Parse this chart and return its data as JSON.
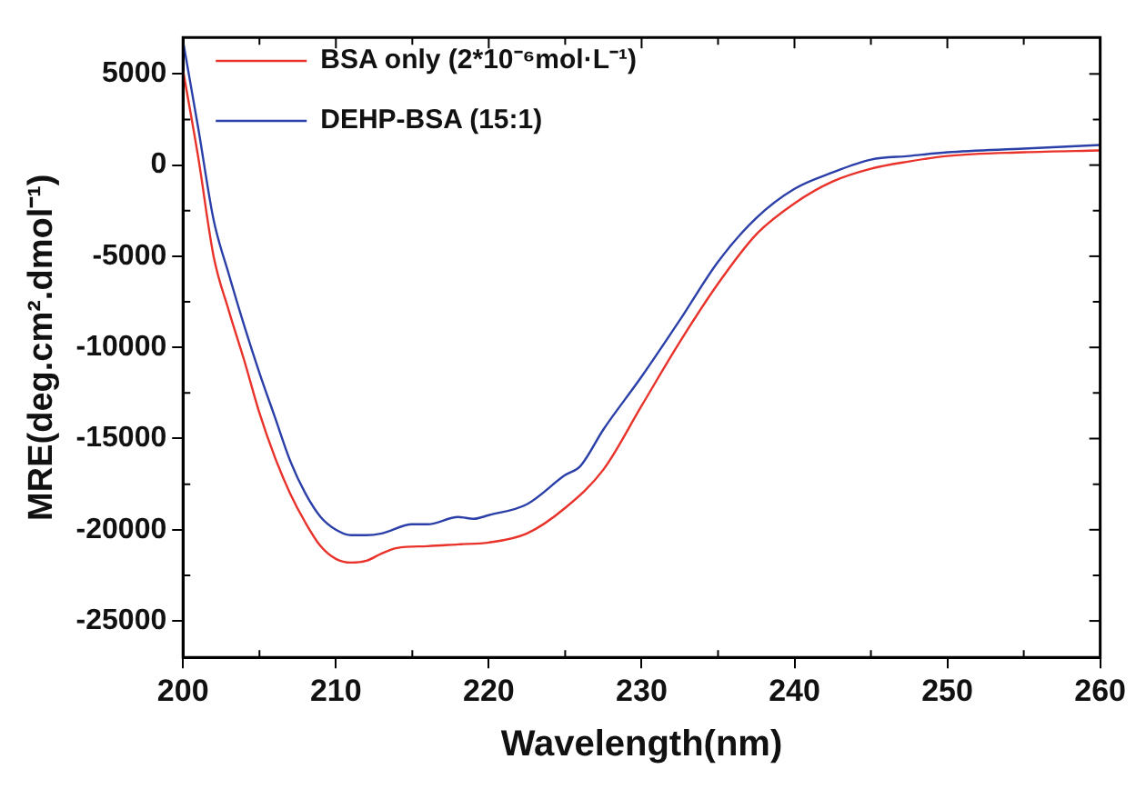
{
  "chart_data": {
    "type": "line",
    "xlabel": "Wavelength(nm)",
    "ylabel": "MRE(deg.cm².dmol⁻¹)",
    "xlim": [
      200,
      260
    ],
    "xticks": [
      200,
      210,
      220,
      230,
      240,
      250,
      260
    ],
    "ylim": [
      -27000,
      7000
    ],
    "yticks": [
      -25000,
      -20000,
      -15000,
      -10000,
      -5000,
      0,
      5000
    ],
    "legend": "top left",
    "grid": false,
    "marker": "none",
    "line_style": "solid",
    "series": [
      {
        "name": "BSA only (2*10⁻⁶mol·L⁻¹)",
        "color": "#e8322a",
        "x": [
          200,
          201,
          202,
          203,
          204,
          205,
          206,
          207,
          208,
          209,
          210,
          211,
          212,
          213,
          214,
          216,
          218,
          220,
          222.5,
          225,
          227.5,
          230,
          232.5,
          235,
          237.5,
          240,
          242.5,
          245,
          247.5,
          250,
          255,
          260
        ],
        "values": [
          5200,
          400,
          -5000,
          -8000,
          -10700,
          -13600,
          -16000,
          -18000,
          -19600,
          -20900,
          -21600,
          -21800,
          -21700,
          -21300,
          -21000,
          -20900,
          -20800,
          -20700,
          -20200,
          -18800,
          -16700,
          -13200,
          -9700,
          -6500,
          -3800,
          -2100,
          -900,
          -200,
          200,
          500,
          700,
          800
        ]
      },
      {
        "name": "DEHP-BSA (15:1)",
        "color": "#2b3fa8",
        "x": [
          200,
          201,
          202,
          203,
          204,
          205,
          206,
          207,
          208,
          209,
          210,
          211,
          212,
          213,
          215,
          216,
          218,
          219,
          220,
          222.5,
          225,
          226,
          227.5,
          230,
          232.5,
          235,
          237.5,
          240,
          242.5,
          245,
          247.5,
          250,
          255,
          260
        ],
        "values": [
          6800,
          2000,
          -3000,
          -6000,
          -8800,
          -11400,
          -13800,
          -16200,
          -18000,
          -19300,
          -20000,
          -20300,
          -20300,
          -20200,
          -19700,
          -19700,
          -19300,
          -19400,
          -19200,
          -18600,
          -17000,
          -16500,
          -14500,
          -11600,
          -8500,
          -5300,
          -2900,
          -1300,
          -400,
          300,
          500,
          700,
          900,
          1100
        ]
      }
    ]
  }
}
